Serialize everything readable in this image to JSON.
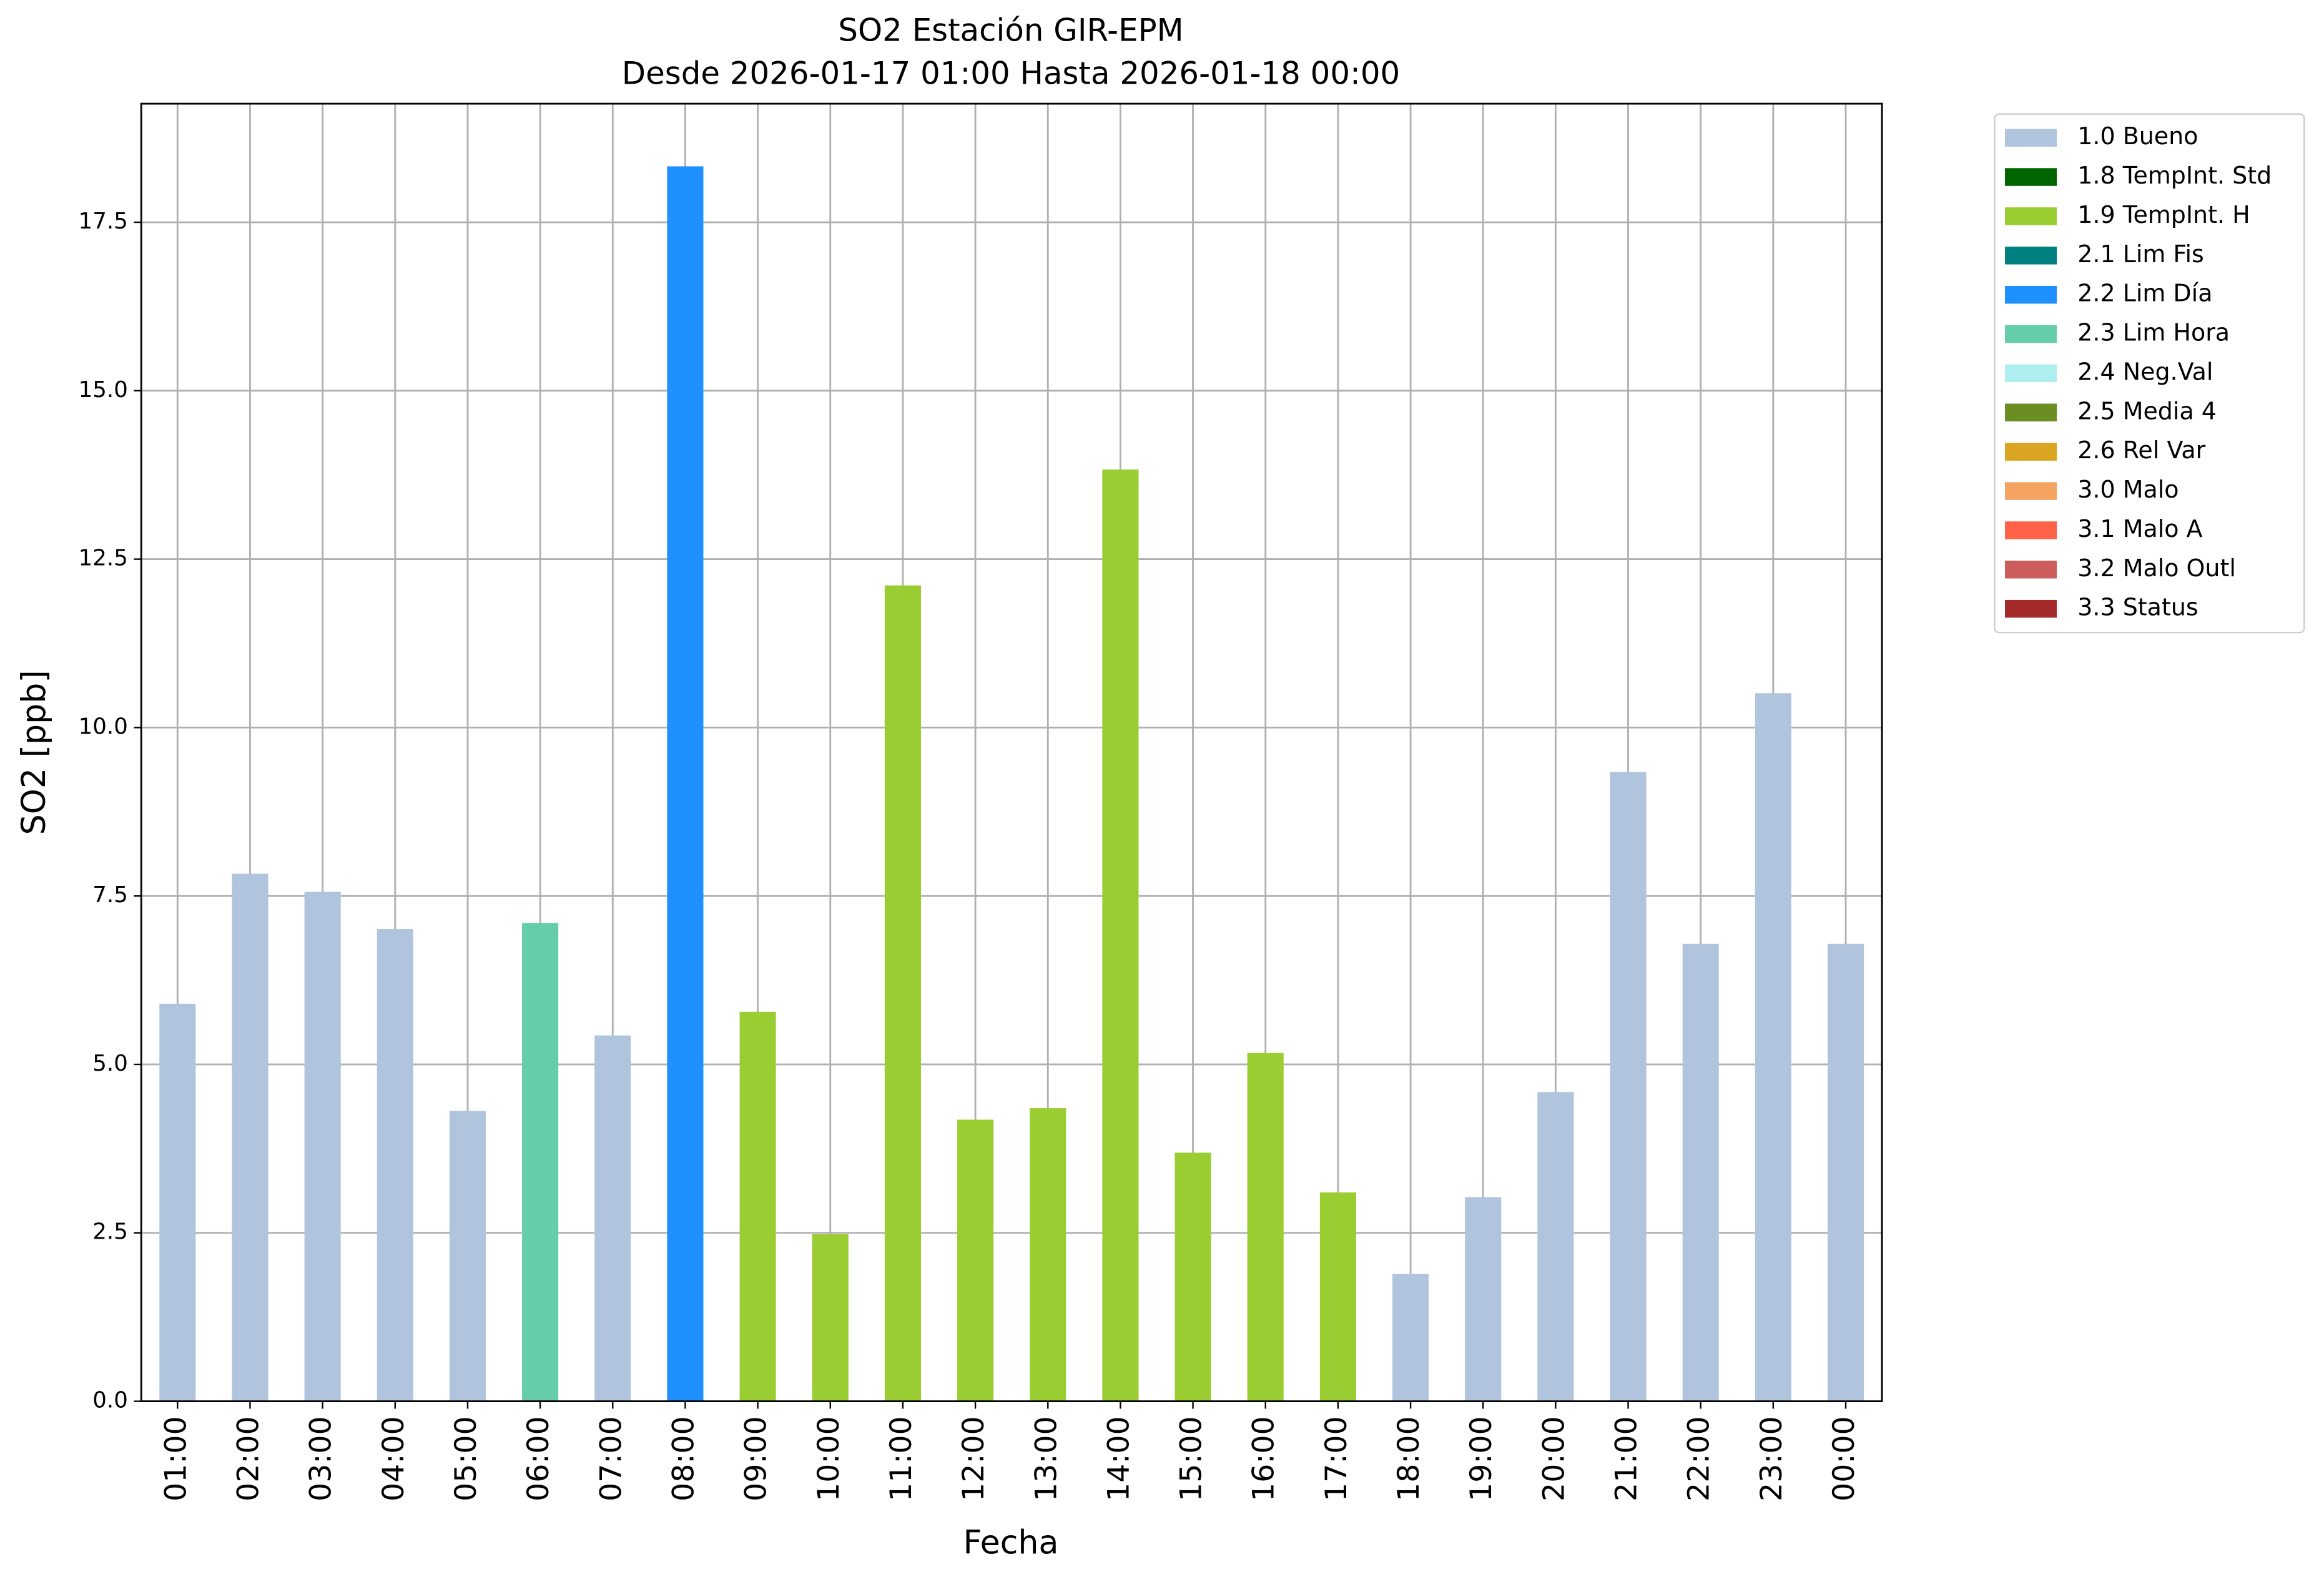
{
  "chart_data": {
    "type": "bar",
    "title": [
      "SO2 Estación GIR-EPM",
      "Desde 2026-01-17 01:00 Hasta 2026-01-18 00:00"
    ],
    "x_label": "Fecha",
    "y_label": "SO2 [ppb]",
    "categories": [
      "01:00",
      "02:00",
      "03:00",
      "04:00",
      "05:00",
      "06:00",
      "07:00",
      "08:00",
      "09:00",
      "10:00",
      "11:00",
      "12:00",
      "13:00",
      "14:00",
      "15:00",
      "16:00",
      "17:00",
      "18:00",
      "19:00",
      "20:00",
      "21:00",
      "22:00",
      "23:00",
      "00:00"
    ],
    "values": [
      5.9,
      7.83,
      7.56,
      7.01,
      4.31,
      7.1,
      5.43,
      18.33,
      5.78,
      2.48,
      12.11,
      4.18,
      4.35,
      13.83,
      3.69,
      5.17,
      3.1,
      1.89,
      3.03,
      4.59,
      9.34,
      6.79,
      10.51,
      6.79
    ],
    "colors": [
      "#b0c4de",
      "#b0c4de",
      "#b0c4de",
      "#b0c4de",
      "#b0c4de",
      "#66cdaa",
      "#b0c4de",
      "#1e90ff",
      "#9acd32",
      "#9acd32",
      "#9acd32",
      "#9acd32",
      "#9acd32",
      "#9acd32",
      "#9acd32",
      "#9acd32",
      "#9acd32",
      "#b0c4de",
      "#b0c4de",
      "#b0c4de",
      "#b0c4de",
      "#b0c4de",
      "#b0c4de",
      "#b0c4de"
    ],
    "ylim": [
      0,
      19.26
    ],
    "yticks": [
      {
        "value": 0,
        "label": "0.0"
      },
      2.5,
      {
        "value": 5,
        "label": "5.0"
      },
      7.5,
      {
        "value": 10,
        "label": "10.0"
      },
      12.5,
      {
        "value": 15,
        "label": "15.0"
      },
      17.5
    ],
    "grid": true,
    "legend_position": "outside-upper-right",
    "legend": [
      {
        "name": "1.0 Bueno",
        "color": "#b0c4de"
      },
      {
        "name": "1.8 TempInt. Std",
        "color": "#006400"
      },
      {
        "name": "1.9 TempInt. H",
        "color": "#9acd32"
      },
      {
        "name": "2.1 Lim Fis",
        "color": "#008080"
      },
      {
        "name": "2.2 Lim Día",
        "color": "#1e90ff"
      },
      {
        "name": "2.3 Lim Hora",
        "color": "#66cdaa"
      },
      {
        "name": "2.4 Neg.Val",
        "color": "#afeeee"
      },
      {
        "name": "2.5 Media 4",
        "color": "#6b8e23"
      },
      {
        "name": "2.6 Rel Var",
        "color": "#daa520"
      },
      {
        "name": "3.0 Malo",
        "color": "#f4a460"
      },
      {
        "name": "3.1 Malo A",
        "color": "#ff6347"
      },
      {
        "name": "3.2 Malo Outl",
        "color": "#cd5c5c"
      },
      {
        "name": "3.3 Status",
        "color": "#a52a2a"
      }
    ]
  }
}
